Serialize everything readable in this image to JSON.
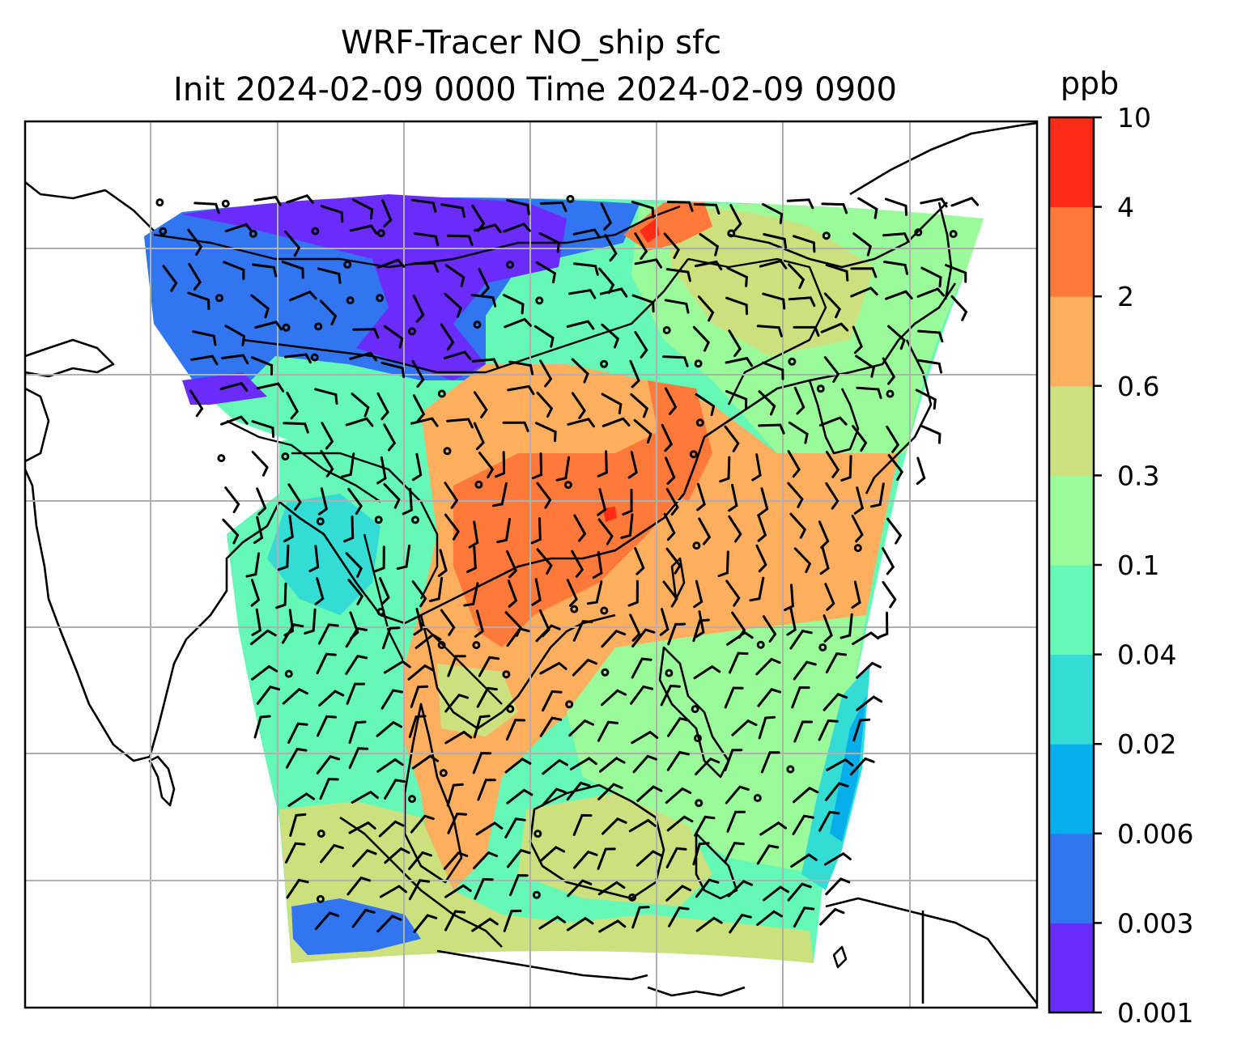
{
  "title": {
    "line1": "WRF-Tracer NO_ship sfc",
    "line2": "Init 2024-02-09 0000 Time 2024-02-09 0900"
  },
  "colorbar": {
    "unit": "ppb",
    "ticks": [
      "0.001",
      "0.003",
      "0.006",
      "0.02",
      "0.04",
      "0.1",
      "0.3",
      "0.6",
      "2",
      "4",
      "10"
    ],
    "colors": [
      "#6a2cfb",
      "#3175f1",
      "#06afe9",
      "#33dcd4",
      "#66f8b6",
      "#9bfb9a",
      "#cce07e",
      "#fdaf5f",
      "#ff7a3a",
      "#fe2b16"
    ]
  },
  "map": {
    "ocean_color": "#ffffff",
    "coastline_color": "#000000",
    "grid_color": "#b0b0b0"
  },
  "chart_data": {
    "type": "heatmap",
    "variable": "NO_ship sfc",
    "unit": "ppb",
    "levels": [
      0.001,
      0.003,
      0.006,
      0.02,
      0.04,
      0.1,
      0.3,
      0.6,
      2,
      4,
      10
    ],
    "overlay": "wind barbs",
    "regions": [
      {
        "value_range": "0.6-2",
        "color": "#fdaf5f"
      },
      {
        "value_range": "2-4",
        "color": "#ff7a3a"
      },
      {
        "value_range": "0.3-0.6",
        "color": "#cce07e"
      },
      {
        "value_range": "0.1-0.3",
        "color": "#9bfb9a"
      },
      {
        "value_range": "0.04-0.1",
        "color": "#66f8b6"
      },
      {
        "value_range": "0.003-0.006",
        "color": "#3175f1"
      },
      {
        "value_range": "0.001-0.003",
        "color": "#6a2cfb"
      }
    ]
  }
}
